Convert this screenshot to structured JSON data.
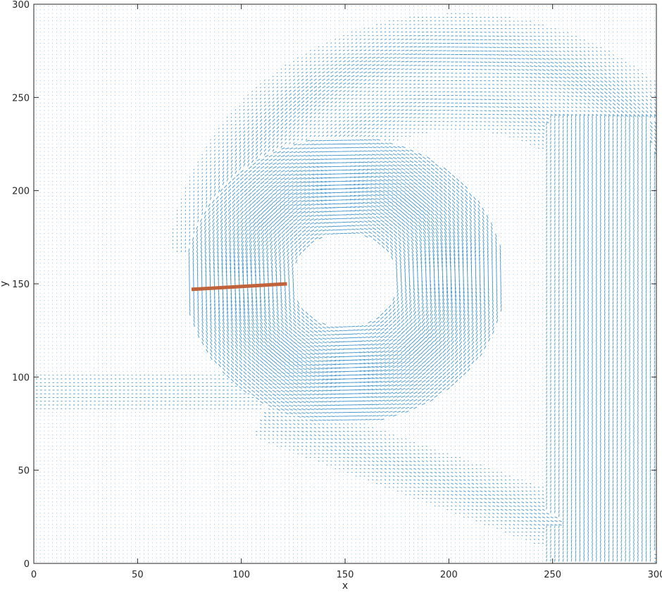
{
  "chart_data": {
    "type": "quiver",
    "title": "",
    "xlabel": "x",
    "ylabel": "y",
    "xlim": [
      0,
      300
    ],
    "ylim": [
      0,
      300
    ],
    "xticks": [
      0,
      50,
      100,
      150,
      200,
      250,
      300
    ],
    "yticks": [
      0,
      50,
      100,
      150,
      200,
      250,
      300
    ],
    "grid": false,
    "box": true,
    "colors": {
      "vectors": "#0072BD",
      "segment": "#C0623A",
      "axes": "#262626"
    },
    "vector_field_regions": [
      {
        "feature": "vortex-ring",
        "center": [
          150,
          152
        ],
        "inner_radius": 27,
        "outer_radius": 74,
        "density": "high"
      },
      {
        "feature": "outer-arc",
        "center": [
          205,
          155
        ],
        "radius": 120,
        "angle_range_deg": [
          20,
          175
        ],
        "density": "medium"
      },
      {
        "feature": "right-band",
        "x_range": [
          245,
          300
        ],
        "y_range": [
          0,
          240
        ],
        "density": "medium"
      },
      {
        "feature": "lower-diagonal-band",
        "from": [
          110,
          80
        ],
        "to": [
          295,
          5
        ],
        "density": "low"
      }
    ],
    "segment": {
      "x": [
        76,
        122
      ],
      "y": [
        147,
        150
      ]
    }
  }
}
